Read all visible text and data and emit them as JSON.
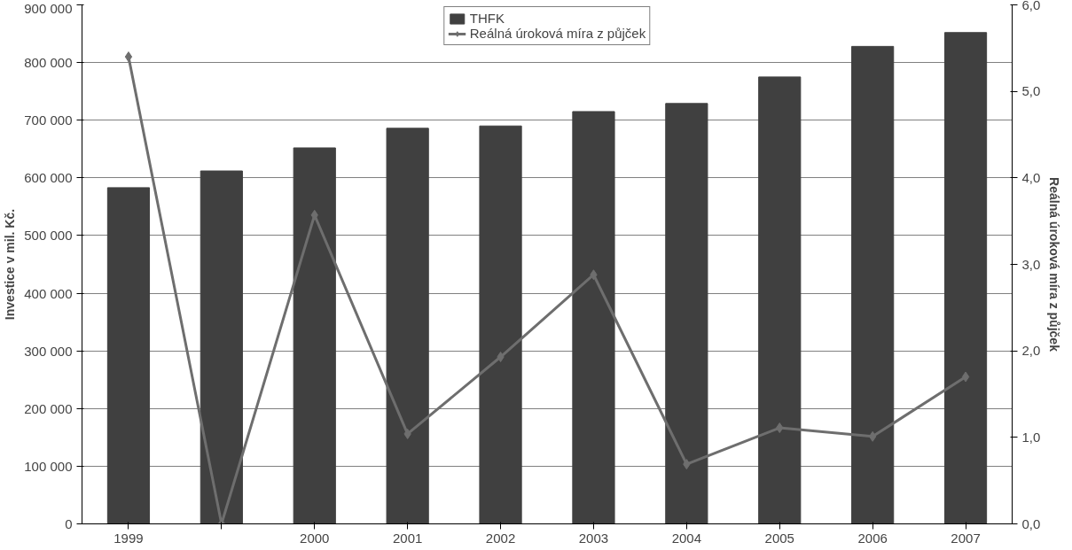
{
  "chart_data": {
    "type": "bar",
    "categories": [
      "1999",
      null,
      "2000",
      "2001",
      "2002",
      "2003",
      "2004",
      "2005",
      "2006",
      "2007"
    ],
    "ylabel": "Investice v mil. Kč.",
    "y2label": "Reálná úroková míra z půjček",
    "series": [
      {
        "name": "THFK",
        "color": "#404040",
        "values": [
          583000,
          612000,
          652000,
          686000,
          690000,
          715000,
          729000,
          775000,
          828000,
          852000
        ]
      },
      {
        "name": "Reálná úroková míra z půjček",
        "type": "line",
        "axis": "y2",
        "color": "#6e6e6e",
        "marker": "diamond",
        "values": [
          5.4,
          0.0,
          3.57,
          1.04,
          1.93,
          2.88,
          0.69,
          1.11,
          1.01,
          1.7
        ]
      }
    ],
    "ylim": [
      0,
      900000
    ],
    "yticks": [
      {
        "value": 0,
        "label": "0"
      },
      {
        "value": 100000,
        "label": "100 000"
      },
      {
        "value": 200000,
        "label": "200 000"
      },
      {
        "value": 300000,
        "label": "300 000"
      },
      {
        "value": 400000,
        "label": "400 000"
      },
      {
        "value": 500000,
        "label": "500 000"
      },
      {
        "value": 600000,
        "label": "600 000"
      },
      {
        "value": 700000,
        "label": "700 000"
      },
      {
        "value": 800000,
        "label": "800 000"
      },
      {
        "value": 900000,
        "label": "900 000"
      }
    ],
    "y2lim": [
      0,
      6
    ],
    "y2ticks": [
      {
        "value": 0,
        "label": "0,0"
      },
      {
        "value": 1,
        "label": "1,0"
      },
      {
        "value": 2,
        "label": "2,0"
      },
      {
        "value": 3,
        "label": "3,0"
      },
      {
        "value": 4,
        "label": "4,0"
      },
      {
        "value": 5,
        "label": "5,0"
      },
      {
        "value": 6,
        "label": "6,0"
      }
    ],
    "grid": "y",
    "legend": "top"
  }
}
